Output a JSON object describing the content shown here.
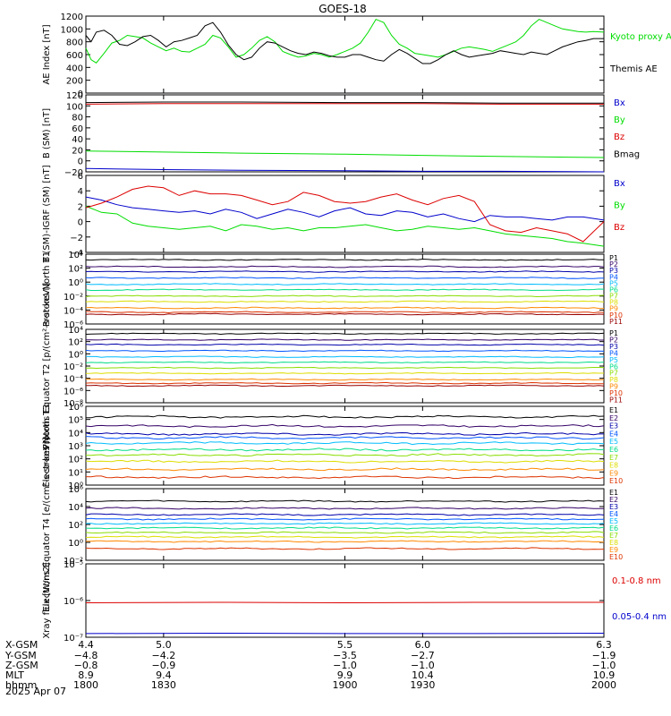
{
  "title": "GOES-18",
  "date_label": "2025 Apr 07",
  "colors": {
    "black": "#000000",
    "red": "#dd0000",
    "green": "#00dd00",
    "blue": "#0000cc",
    "P1": "#000000",
    "P2": "#330066",
    "P3": "#0000aa",
    "P4": "#0055ff",
    "P5": "#00bbff",
    "P6": "#00dd88",
    "P7": "#88dd00",
    "P8": "#dddd00",
    "P9": "#ff8800",
    "P10": "#dd3300",
    "P11": "#990000"
  },
  "chart_data": [
    {
      "type": "line",
      "id": "ae",
      "ylabel": "AE Index [nT]",
      "ylim": [
        0,
        1200
      ],
      "yticks": [
        "0",
        "200",
        "400",
        "600",
        "800",
        "1000",
        "1200"
      ],
      "legend": [
        "Kyoto proxy AE",
        "Themis AE"
      ],
      "series": [
        {
          "name": "Kyoto proxy AE",
          "color": "green",
          "x": [
            1800,
            1802,
            1804,
            1807,
            1810,
            1813,
            1816,
            1819,
            1822,
            1825,
            1828,
            1831,
            1834,
            1837,
            1840,
            1843,
            1846,
            1849,
            1852,
            1855,
            1858,
            1861,
            1864,
            1867,
            1870,
            1873,
            1876,
            1879,
            1882,
            1885,
            1888,
            1891,
            1894,
            1897,
            1900,
            1903,
            1906,
            1909,
            1912,
            1915,
            1918,
            1921,
            1924,
            1927,
            1930,
            1933,
            1936,
            1939,
            1942,
            1945,
            1948,
            1951,
            1954,
            1957,
            1960,
            1963,
            1966,
            1969,
            1972,
            1975,
            1978,
            1981,
            1984,
            1987,
            1990,
            1993,
            1996,
            2000
          ],
          "y": [
            700,
            520,
            470,
            620,
            780,
            820,
            900,
            880,
            860,
            780,
            720,
            660,
            700,
            650,
            640,
            700,
            760,
            900,
            860,
            720,
            560,
            600,
            700,
            820,
            880,
            800,
            650,
            600,
            560,
            580,
            620,
            600,
            560,
            600,
            650,
            700,
            780,
            950,
            1150,
            1100,
            900,
            760,
            700,
            620,
            600,
            580,
            560,
            600,
            650,
            700,
            720,
            700,
            680,
            650,
            700,
            750,
            800,
            900,
            1050,
            1150,
            1100,
            1050,
            1000,
            980,
            960,
            950,
            960,
            950
          ]
        },
        {
          "name": "Themis AE",
          "color": "black",
          "x": [
            1800,
            1802,
            1804,
            1807,
            1810,
            1813,
            1816,
            1819,
            1822,
            1825,
            1828,
            1831,
            1834,
            1837,
            1840,
            1843,
            1846,
            1849,
            1852,
            1855,
            1858,
            1861,
            1864,
            1867,
            1870,
            1873,
            1876,
            1879,
            1882,
            1885,
            1888,
            1891,
            1894,
            1897,
            1900,
            1903,
            1906,
            1909,
            1912,
            1915,
            1918,
            1921,
            1924,
            1927,
            1930,
            1933,
            1936,
            1939,
            1942,
            1945,
            1948,
            1951,
            1954,
            1957,
            1960,
            1963,
            1966,
            1969,
            1972,
            1975,
            1978,
            1981,
            1984,
            1987,
            1990,
            1993,
            1996,
            2000
          ],
          "y": [
            900,
            800,
            950,
            980,
            900,
            760,
            740,
            800,
            880,
            900,
            820,
            720,
            800,
            820,
            860,
            900,
            1050,
            1100,
            950,
            750,
            600,
            520,
            560,
            700,
            800,
            780,
            720,
            660,
            620,
            600,
            640,
            620,
            580,
            560,
            560,
            600,
            600,
            560,
            520,
            500,
            600,
            680,
            620,
            540,
            460,
            460,
            520,
            600,
            660,
            600,
            560,
            580,
            600,
            620,
            660,
            640,
            620,
            600,
            640,
            620,
            600,
            660,
            720,
            760,
            800,
            820,
            850,
            850
          ]
        }
      ]
    },
    {
      "type": "line",
      "id": "bsm",
      "ylabel": "B (SM) [nT]",
      "ylim": [
        -20,
        120
      ],
      "yticks": [
        "−20",
        "0",
        "20",
        "40",
        "60",
        "80",
        "100",
        "120"
      ],
      "legend": [
        "Bx",
        "By",
        "Bz",
        "Bmag"
      ],
      "series": [
        {
          "name": "Bx",
          "color": "blue",
          "x": [
            1800,
            1830,
            1860,
            1900,
            1930,
            1960,
            2000
          ],
          "y": [
            -14,
            -16,
            -17,
            -18,
            -19,
            -19,
            -20
          ]
        },
        {
          "name": "By",
          "color": "green",
          "x": [
            1800,
            1830,
            1860,
            1900,
            1930,
            1960,
            2000
          ],
          "y": [
            18,
            16,
            14,
            12,
            10,
            8,
            6
          ]
        },
        {
          "name": "Bz",
          "color": "red",
          "x": [
            1800,
            1830,
            1860,
            1900,
            1930,
            1960,
            2000
          ],
          "y": [
            103,
            104,
            104,
            104,
            104,
            103,
            103
          ]
        },
        {
          "name": "Bmag",
          "color": "black",
          "x": [
            1800,
            1830,
            1860,
            1900,
            1930,
            1960,
            2000
          ],
          "y": [
            106,
            107,
            107,
            106,
            106,
            105,
            105
          ]
        }
      ]
    },
    {
      "type": "line",
      "id": "bigrf",
      "ylabel": "B (SM)-IGRF (SM) [nT]",
      "ylim": [
        -4,
        6
      ],
      "yticks": [
        "−4",
        "−2",
        "0",
        "2",
        "4",
        "6"
      ],
      "legend": [
        "Bx",
        "By",
        "Bz"
      ],
      "series": [
        {
          "name": "Bx",
          "color": "blue",
          "x": [
            1800,
            1806,
            1812,
            1818,
            1824,
            1830,
            1836,
            1842,
            1848,
            1854,
            1860,
            1866,
            1872,
            1878,
            1884,
            1890,
            1896,
            1902,
            1908,
            1914,
            1920,
            1926,
            1932,
            1938,
            1944,
            1950,
            1956,
            1962,
            1968,
            1974,
            1980,
            1986,
            1992,
            2000
          ],
          "y": [
            3.2,
            2.8,
            2.2,
            1.8,
            1.6,
            1.4,
            1.2,
            1.4,
            1.0,
            1.6,
            1.2,
            0.4,
            1.0,
            1.6,
            1.2,
            0.6,
            1.4,
            1.8,
            1.0,
            0.8,
            1.4,
            1.2,
            0.6,
            1.0,
            0.4,
            0.0,
            0.8,
            0.6,
            0.6,
            0.4,
            0.2,
            0.6,
            0.6,
            0.2
          ]
        },
        {
          "name": "By",
          "color": "green",
          "x": [
            1800,
            1806,
            1812,
            1818,
            1824,
            1830,
            1836,
            1842,
            1848,
            1854,
            1860,
            1866,
            1872,
            1878,
            1884,
            1890,
            1896,
            1902,
            1908,
            1914,
            1920,
            1926,
            1932,
            1938,
            1944,
            1950,
            1956,
            1962,
            1968,
            1974,
            1980,
            1986,
            1992,
            2000
          ],
          "y": [
            2.0,
            1.2,
            1.0,
            -0.2,
            -0.6,
            -0.8,
            -1.0,
            -0.8,
            -0.6,
            -1.2,
            -0.4,
            -0.6,
            -1.0,
            -0.8,
            -1.2,
            -0.8,
            -0.8,
            -0.6,
            -0.4,
            -0.8,
            -1.2,
            -1.0,
            -0.6,
            -0.8,
            -1.0,
            -0.8,
            -1.2,
            -1.6,
            -1.8,
            -2.0,
            -2.2,
            -2.6,
            -2.8,
            -3.2
          ]
        },
        {
          "name": "Bz",
          "color": "red",
          "x": [
            1800,
            1806,
            1812,
            1818,
            1824,
            1830,
            1836,
            1842,
            1848,
            1854,
            1860,
            1866,
            1872,
            1878,
            1884,
            1890,
            1896,
            1902,
            1908,
            1914,
            1920,
            1926,
            1932,
            1938,
            1944,
            1950,
            1956,
            1962,
            1968,
            1974,
            1980,
            1986,
            1992,
            2000
          ],
          "y": [
            1.8,
            2.4,
            3.2,
            4.2,
            4.6,
            4.4,
            3.4,
            4.0,
            3.6,
            3.6,
            3.4,
            2.8,
            2.2,
            2.6,
            3.8,
            3.4,
            2.6,
            2.4,
            2.6,
            3.2,
            3.6,
            2.8,
            2.2,
            3.0,
            3.4,
            2.6,
            -0.4,
            -1.2,
            -1.4,
            -0.8,
            -1.2,
            -1.6,
            -2.6,
            0.0
          ]
        }
      ]
    },
    {
      "type": "line",
      "id": "pn",
      "log": true,
      "ylabel": "Protons North T1",
      "ylim_exp": [
        -6,
        4
      ],
      "yticks": [
        "10⁻⁶",
        "10⁻⁴",
        "10⁻²",
        "10⁰",
        "10²",
        "10⁴"
      ],
      "legend": [
        "P1",
        "P2",
        "P3",
        "P4",
        "P5",
        "P6",
        "P7",
        "P8",
        "P9",
        "P10",
        "P11"
      ],
      "levels_exp": [
        3.2,
        2.2,
        1.5,
        0.6,
        -0.3,
        -1.1,
        -2.0,
        -2.8,
        -3.7,
        -4.3,
        -4.6
      ]
    },
    {
      "type": "line",
      "id": "pe",
      "log": true,
      "ylabel": "Protons Equator T2 [p/(cm²-s-sr-keV)]",
      "ylim_exp": [
        -8,
        4
      ],
      "yticks": [
        "10⁻⁸",
        "10⁻⁶",
        "10⁻⁴",
        "10⁻²",
        "10⁰",
        "10²",
        "10⁴"
      ],
      "legend": [
        "P1",
        "P2",
        "P3",
        "P4",
        "P5",
        "P6",
        "P7",
        "P8",
        "P9",
        "P10",
        "P11"
      ],
      "levels_exp": [
        3.3,
        2.3,
        1.5,
        0.5,
        -0.5,
        -1.4,
        -2.3,
        -3.2,
        -4.2,
        -4.8,
        -5.2
      ]
    },
    {
      "type": "line",
      "id": "en",
      "log": true,
      "ylabel": "Electrons North T3",
      "ylim_exp": [
        0,
        6
      ],
      "yticks": [
        "10⁰",
        "10¹",
        "10²",
        "10³",
        "10⁴",
        "10⁵",
        "10⁶"
      ],
      "legend": [
        "E1",
        "E2",
        "E3",
        "E4",
        "E5",
        "E6",
        "E7",
        "E8",
        "E9",
        "E10"
      ],
      "levels_exp": [
        5.2,
        4.5,
        3.9,
        3.6,
        3.2,
        2.7,
        2.3,
        1.8,
        1.2,
        0.6
      ]
    },
    {
      "type": "line",
      "id": "ee",
      "log": true,
      "ylabel": "Electrons Equator T4 [e/(cm²-s-sr-keV)]",
      "ylim_exp": [
        -2,
        6
      ],
      "yticks": [
        "10⁻²",
        "10⁰",
        "10²",
        "10⁴",
        "10⁶"
      ],
      "legend": [
        "E1",
        "E2",
        "E3",
        "E4",
        "E5",
        "E6",
        "E7",
        "E8",
        "E9",
        "E10"
      ],
      "levels_exp": [
        4.6,
        3.8,
        3.1,
        2.6,
        2.1,
        1.6,
        1.1,
        0.6,
        0.1,
        -0.7
      ]
    },
    {
      "type": "line",
      "id": "xray",
      "log": true,
      "ylabel": "Xray flux [W/m2]",
      "ylim_exp": [
        -7,
        -5
      ],
      "yticks": [
        "10⁻⁷",
        "10⁻⁶",
        "10⁻⁵"
      ],
      "legend": [
        "0.1-0.8 nm",
        "0.05-0.4 nm"
      ],
      "series": [
        {
          "name": "0.1-0.8 nm",
          "color": "red",
          "x": [
            1800,
            1850,
            1900,
            1950,
            2000
          ],
          "y_exp": [
            -6.06,
            -6.05,
            -6.06,
            -6.05,
            -6.05
          ]
        },
        {
          "name": "0.05-0.4 nm",
          "color": "blue",
          "x": [
            1800,
            1850,
            1900,
            1950,
            2000
          ],
          "y_exp": [
            -6.9,
            -6.89,
            -6.9,
            -6.9,
            -6.89
          ]
        }
      ]
    }
  ],
  "xaxis": {
    "range": [
      1800,
      2000
    ],
    "ticks": [
      1800,
      1830,
      1900,
      1930,
      2000
    ],
    "rows": [
      {
        "label": "X-GSM",
        "values": [
          "4.4",
          "5.0",
          "5.5",
          "6.0",
          "6.3"
        ]
      },
      {
        "label": "Y-GSM",
        "values": [
          "−4.8",
          "−4.2",
          "−3.5",
          "−2.7",
          "−1.9"
        ]
      },
      {
        "label": "Z-GSM",
        "values": [
          "−0.8",
          "−0.9",
          "−1.0",
          "−1.0",
          "−1.0"
        ]
      },
      {
        "label": "MLT",
        "values": [
          "8.9",
          "9.4",
          "9.9",
          "10.4",
          "10.9"
        ]
      },
      {
        "label": "hhmm",
        "values": [
          "1800",
          "1830",
          "1900",
          "1930",
          "2000"
        ]
      }
    ]
  }
}
